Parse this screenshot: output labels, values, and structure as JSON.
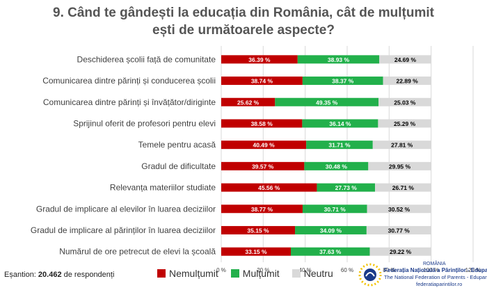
{
  "title": "9. Când te gândești la educația din România, cât de mulțumit ești de următoarele aspecte?",
  "sample": {
    "prefix": "Eșantion: ",
    "value": "20.462",
    "suffix": " de respondenți"
  },
  "colors": {
    "nemultumit": "#c00000",
    "multumit": "#22b04b",
    "neutru": "#d9d9d9",
    "grid": "#d9d9d9",
    "text": "#404040"
  },
  "logo": {
    "tag": "ROMÂNIA",
    "line1": "Federația Națională a Părinților - Edupart",
    "line2": "The National Federation of Parents - Edupart",
    "line3": "federatiaparintilor.ro"
  },
  "chart_data": {
    "type": "bar",
    "orientation": "horizontal",
    "stacked": true,
    "title": "9. Când te gândești la educația din România, cât de mulțumit ești de următoarele aspecte?",
    "categories": [
      "Deschiderea școlii față de comunitate",
      "Comunicarea dintre părinți și conducerea școlii",
      "Comunicarea dintre părinți și învățător/diriginte",
      "Sprijinul oferit de profesori pentru elevi",
      "Temele pentru acasă",
      "Gradul de dificultate",
      "Relevanța materiilor studiate",
      "Gradul de implicare al elevilor în luarea deciziilor",
      "Gradul de implicare al părinților în luarea deciziilor",
      "Numărul de ore petrecut de elevi la școală"
    ],
    "series": [
      {
        "name": "Nemulțumit",
        "values": [
          36.39,
          38.74,
          25.62,
          38.58,
          40.49,
          39.57,
          45.56,
          38.77,
          35.15,
          33.15
        ],
        "labels": [
          "36.39 %",
          "38.74 %",
          "25.62 %",
          "38.58 %",
          "40.49 %",
          "39.57 %",
          "45.56 %",
          "38.77 %",
          "35.15 %",
          "33.15 %"
        ]
      },
      {
        "name": "Mulțumit",
        "values": [
          38.93,
          38.37,
          49.35,
          36.14,
          31.71,
          30.48,
          27.73,
          30.71,
          34.09,
          37.63
        ],
        "labels": [
          "38.93 %",
          "38.37 %",
          "49.35 %",
          "36.14 %",
          "31.71 %",
          "30.48 %",
          "27.73 %",
          "30.71 %",
          "34.09 %",
          "37.63 %"
        ]
      },
      {
        "name": "Neutru",
        "values": [
          24.69,
          22.89,
          25.03,
          25.29,
          27.81,
          29.95,
          26.71,
          30.52,
          30.77,
          29.22
        ],
        "labels": [
          "24.69 %",
          "22.89 %",
          "25.03 %",
          "25.29 %",
          "27.81 %",
          "29.95 %",
          "26.71 %",
          "30.52 %",
          "30.77 %",
          "29.22 %"
        ]
      }
    ],
    "xlim": [
      0,
      120
    ],
    "xticks": [
      "0 %",
      "20 %",
      "40 %",
      "60 %",
      "80 %",
      "100 %",
      "120 %"
    ],
    "legend": [
      "Nemulțumit",
      "Mulțumit",
      "Neutru"
    ],
    "legend_position": "bottom",
    "grid": true
  }
}
